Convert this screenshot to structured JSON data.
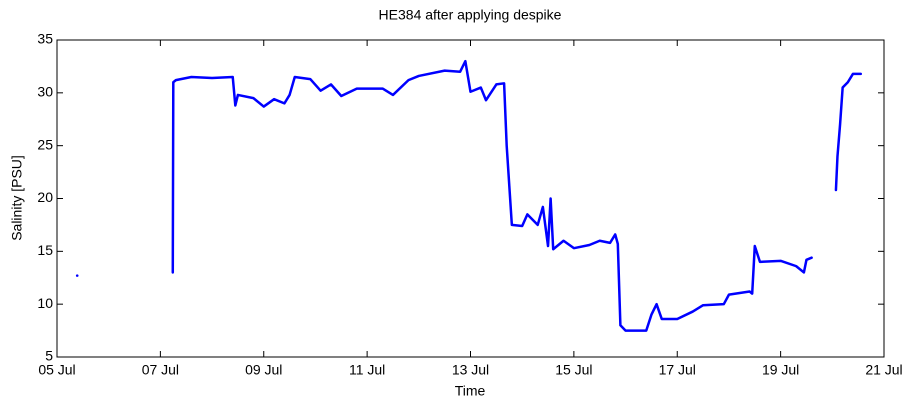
{
  "chart_data": {
    "type": "line",
    "title": "HE384 after applying despike",
    "x_label": "Time",
    "y_label": "Salinity [PSU]",
    "x": [
      5.39,
      null,
      7.24,
      7.25,
      7.3,
      7.6,
      8.0,
      8.4,
      8.45,
      8.5,
      8.8,
      9.0,
      9.2,
      9.4,
      9.5,
      9.6,
      9.9,
      10.1,
      10.3,
      10.5,
      10.8,
      11.3,
      11.5,
      11.8,
      12.0,
      12.5,
      12.8,
      12.9,
      13.0,
      13.2,
      13.3,
      13.5,
      13.65,
      13.7,
      13.8,
      14.0,
      14.1,
      14.3,
      14.4,
      14.5,
      14.55,
      14.6,
      14.8,
      15.0,
      15.3,
      15.5,
      15.7,
      15.8,
      15.85,
      15.9,
      16.0,
      16.4,
      16.5,
      16.6,
      16.7,
      17.0,
      17.3,
      17.5,
      17.9,
      18.0,
      18.4,
      18.45,
      18.5,
      18.6,
      19.0,
      19.3,
      19.45,
      19.5,
      19.6,
      null,
      20.07,
      20.1,
      20.15,
      20.2,
      20.3,
      20.4,
      20.55
    ],
    "series": [
      {
        "name": "Salinity",
        "color": "#0000ff",
        "values": [
          12.7,
          null,
          13.0,
          31.0,
          31.2,
          31.5,
          31.4,
          31.5,
          28.8,
          29.8,
          29.5,
          28.7,
          29.4,
          29.0,
          29.8,
          31.5,
          31.3,
          30.2,
          30.8,
          29.7,
          30.4,
          30.4,
          29.8,
          31.2,
          31.6,
          32.1,
          32.0,
          33.0,
          30.1,
          30.5,
          29.3,
          30.8,
          30.9,
          25.0,
          17.5,
          17.4,
          18.5,
          17.5,
          19.2,
          15.5,
          20.0,
          15.2,
          16.0,
          15.3,
          15.6,
          16.0,
          15.8,
          16.6,
          15.7,
          8.0,
          7.5,
          7.5,
          9.0,
          10.0,
          8.6,
          8.6,
          9.3,
          9.9,
          10.0,
          10.9,
          11.2,
          11.0,
          15.5,
          14.0,
          14.1,
          13.6,
          13.0,
          14.2,
          14.4,
          null,
          20.8,
          24.0,
          27.0,
          30.5,
          31.0,
          31.8,
          31.8
        ]
      }
    ],
    "xlim": [
      5,
      21
    ],
    "xticks": [
      {
        "value": 5,
        "label": "05 Jul"
      },
      {
        "value": 7,
        "label": "07 Jul"
      },
      {
        "value": 9,
        "label": "09 Jul"
      },
      {
        "value": 11,
        "label": "11 Jul"
      },
      {
        "value": 13,
        "label": "13 Jul"
      },
      {
        "value": 15,
        "label": "15 Jul"
      },
      {
        "value": 17,
        "label": "17 Jul"
      },
      {
        "value": 19,
        "label": "19 Jul"
      },
      {
        "value": 21,
        "label": "21 Jul"
      }
    ],
    "ylim": [
      5,
      35
    ],
    "yticks": [
      5,
      10,
      15,
      20,
      25,
      30,
      35
    ]
  }
}
